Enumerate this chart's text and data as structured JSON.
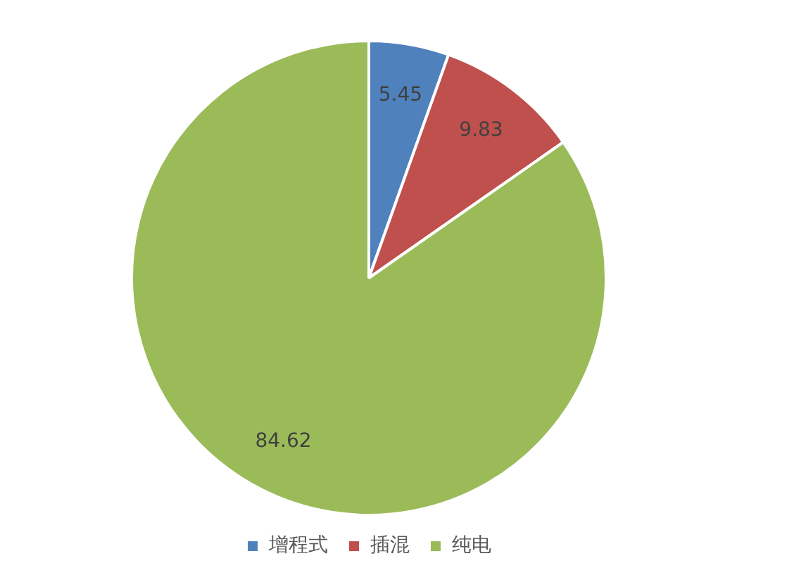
{
  "chart_data": {
    "type": "pie",
    "categories": [
      "增程式",
      "插混",
      "纯电"
    ],
    "values": [
      5.45,
      9.83,
      84.62
    ],
    "colors": [
      "#4f81bd",
      "#c0504d",
      "#9bbb59"
    ],
    "data_labels": true,
    "legend": "bottom"
  }
}
